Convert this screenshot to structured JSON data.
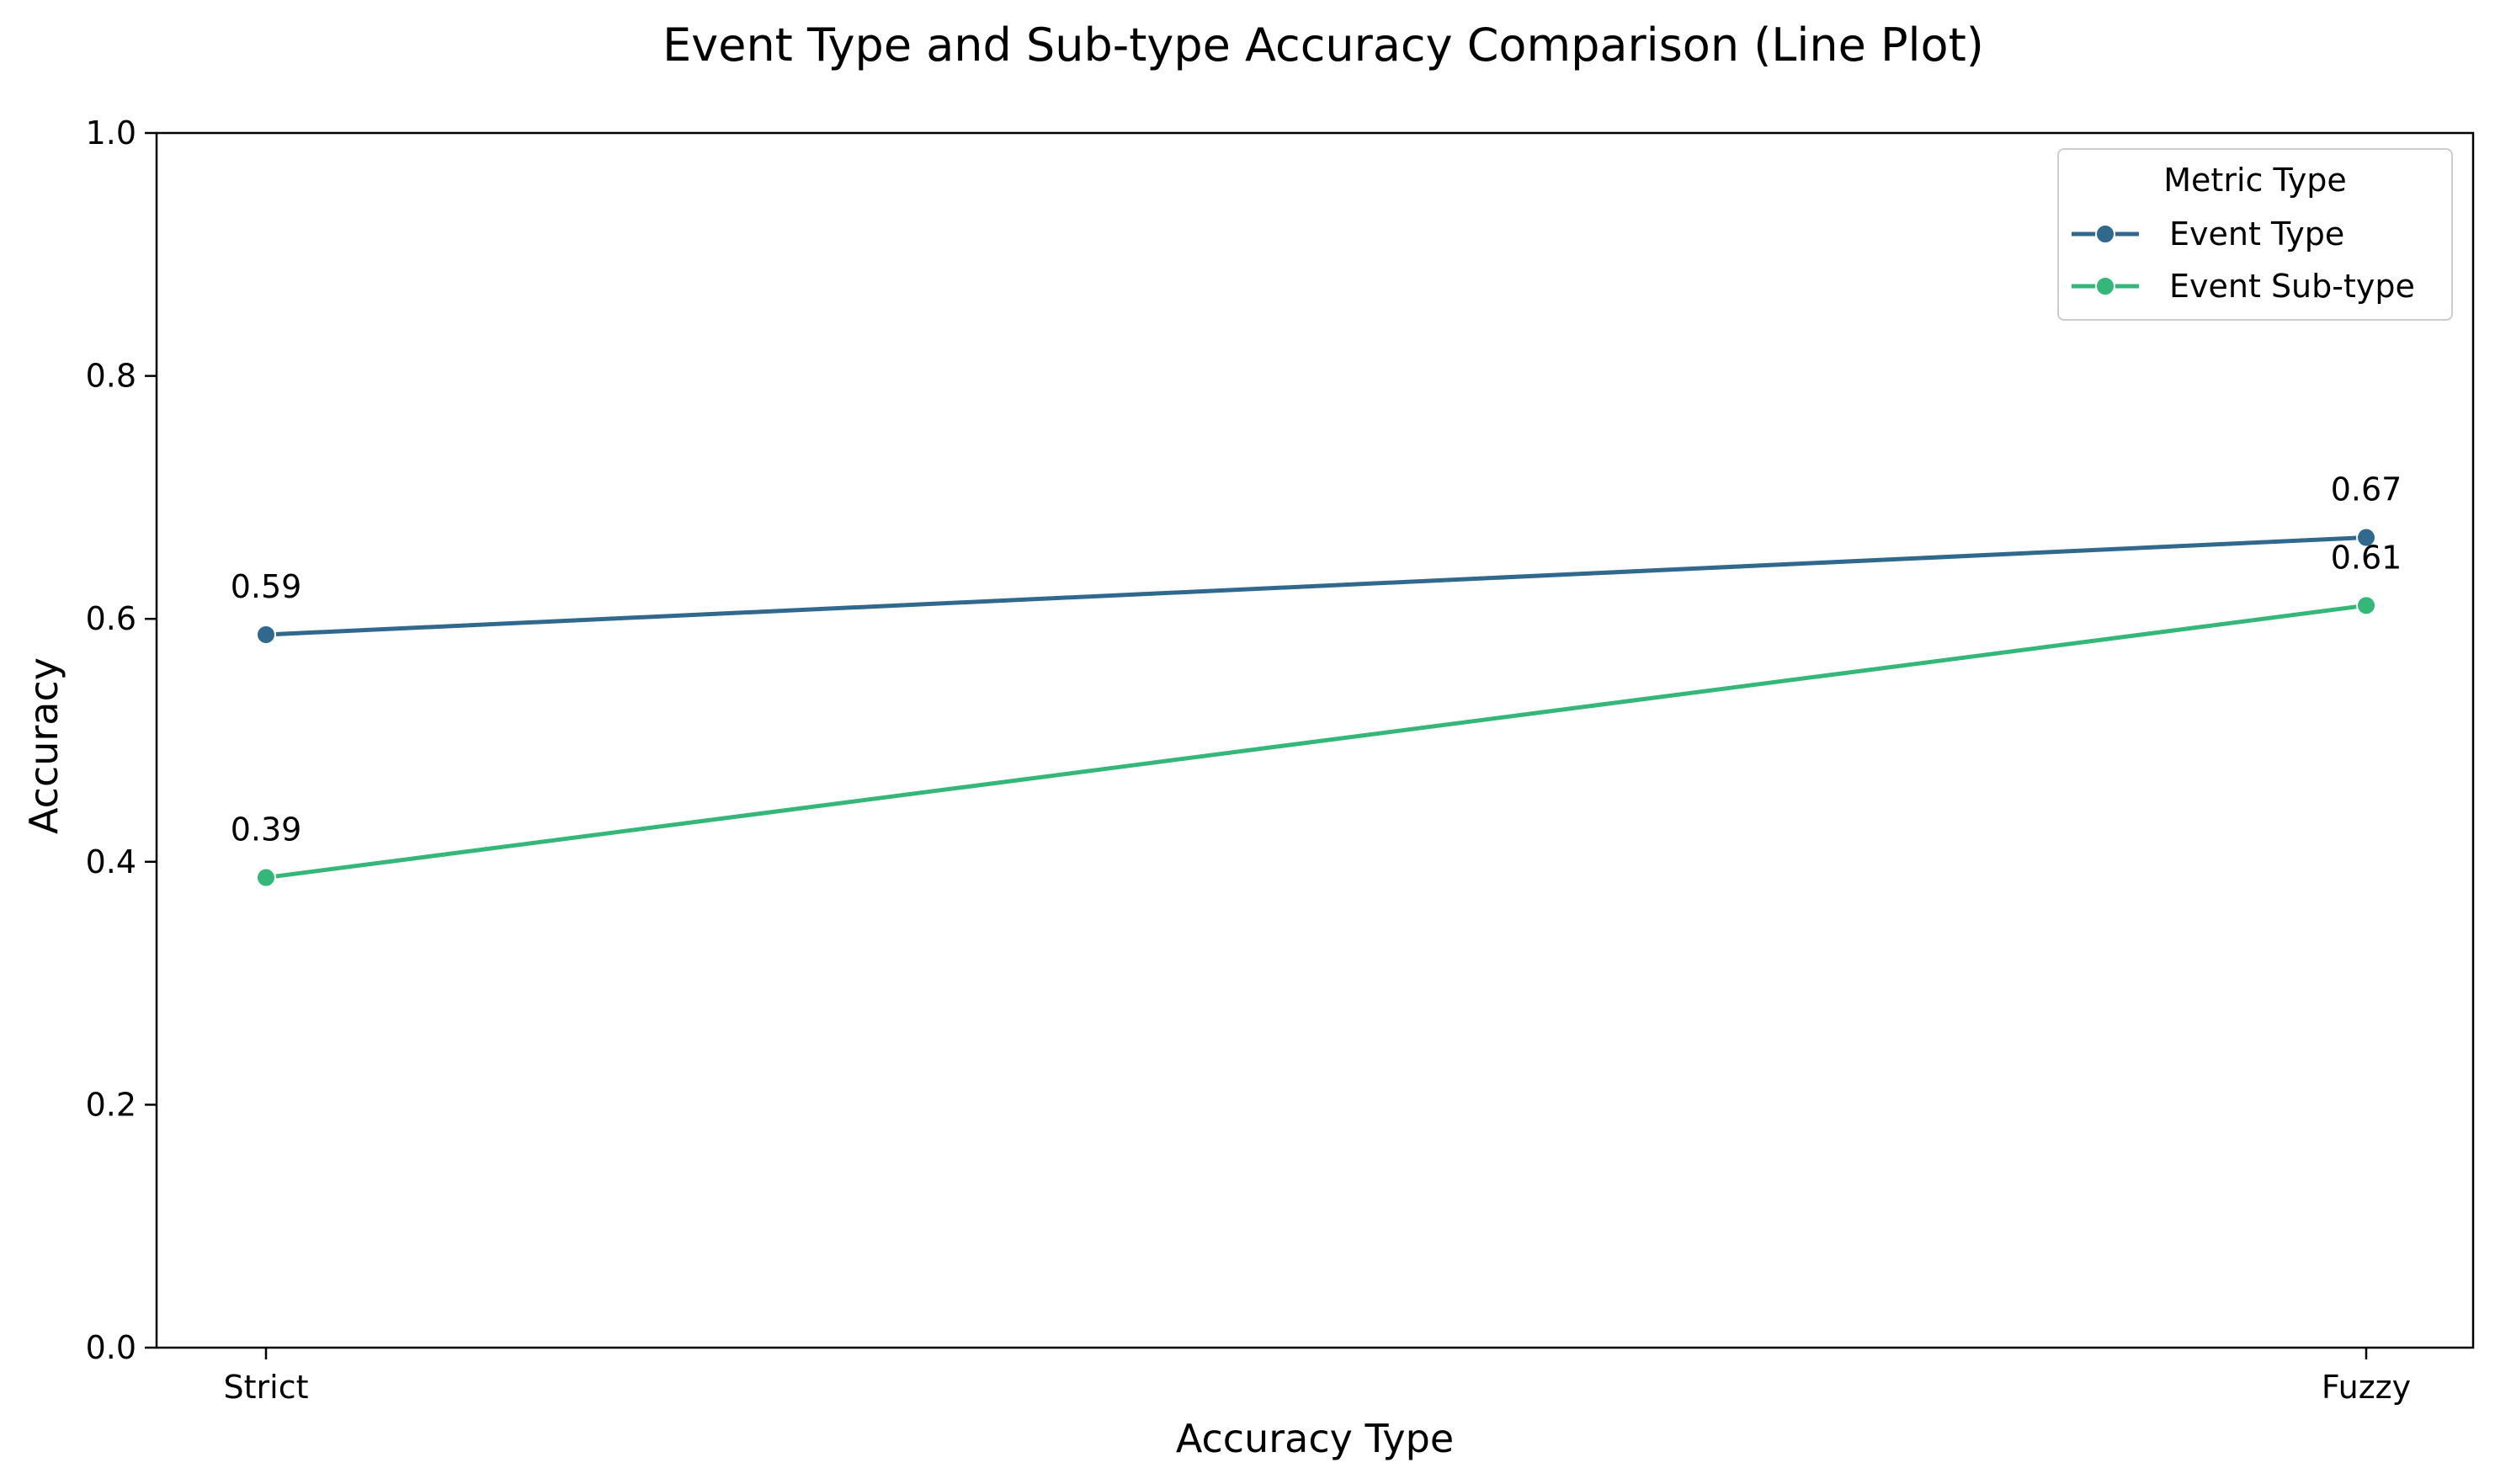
{
  "chart_data": {
    "type": "line",
    "title": "Event Type and Sub-type Accuracy Comparison (Line Plot)",
    "xlabel": "Accuracy Type",
    "ylabel": "Accuracy",
    "categories": [
      "Strict",
      "Fuzzy"
    ],
    "ylim": [
      0,
      1
    ],
    "yticks": [
      0.0,
      0.2,
      0.4,
      0.6,
      0.8,
      1.0
    ],
    "ytick_labels": [
      "0.0",
      "0.2",
      "0.4",
      "0.6",
      "0.8",
      "1.0"
    ],
    "grid": false,
    "legend": {
      "title": "Metric Type",
      "placement": "top-right"
    },
    "series": [
      {
        "name": "Event Type",
        "color": "#31688e",
        "values": [
          0.587,
          0.667
        ],
        "labels": [
          "0.59",
          "0.67"
        ]
      },
      {
        "name": "Event Sub-type",
        "color": "#35b779",
        "values": [
          0.387,
          0.611
        ],
        "labels": [
          "0.39",
          "0.61"
        ]
      }
    ]
  }
}
